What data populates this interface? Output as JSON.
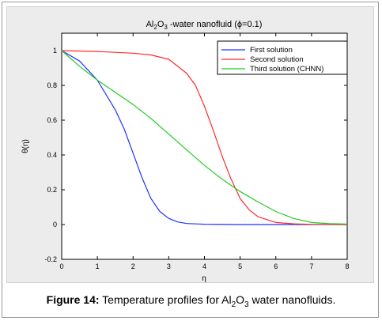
{
  "chart_data": {
    "type": "line",
    "title_prefix": "Al",
    "title_sub1": "2",
    "title_mid": "O",
    "title_sub2": "3",
    "title_suffix": " -water nanofluid  (ϕ=0.1)",
    "xlabel": "η",
    "ylabel": "θ(η)",
    "xlim": [
      0,
      8
    ],
    "ylim": [
      -0.2,
      1.1
    ],
    "xticks": [
      0,
      1,
      2,
      3,
      4,
      5,
      6,
      7,
      8
    ],
    "yticks": [
      -0.2,
      0,
      0.2,
      0.4,
      0.6,
      0.8,
      1
    ],
    "grid": false,
    "legend_position": "top-right",
    "series": [
      {
        "name": "First solution",
        "color": "#1f32ff",
        "x": [
          0,
          0.5,
          1,
          1.5,
          1.75,
          2,
          2.25,
          2.5,
          2.75,
          3,
          3.25,
          3.5,
          4,
          5,
          6,
          7,
          8
        ],
        "y": [
          1,
          0.94,
          0.83,
          0.66,
          0.55,
          0.41,
          0.27,
          0.15,
          0.075,
          0.035,
          0.015,
          0.006,
          0.002,
          0,
          0,
          0,
          0
        ]
      },
      {
        "name": "Second solution",
        "color": "#ff2a2a",
        "x": [
          0,
          1,
          2,
          2.5,
          3,
          3.5,
          3.75,
          4,
          4.25,
          4.5,
          4.75,
          5,
          5.25,
          5.5,
          6,
          6.5,
          7,
          8
        ],
        "y": [
          1,
          0.995,
          0.985,
          0.975,
          0.95,
          0.87,
          0.8,
          0.68,
          0.54,
          0.39,
          0.26,
          0.15,
          0.085,
          0.045,
          0.012,
          0.004,
          0.001,
          0
        ]
      },
      {
        "name": "Third solution (CHNN)",
        "color": "#22cc22",
        "x": [
          0,
          0.5,
          1,
          1.5,
          2,
          2.5,
          3,
          3.5,
          4,
          4.5,
          5,
          5.5,
          6,
          6.5,
          7,
          7.5,
          8
        ],
        "y": [
          1,
          0.91,
          0.83,
          0.76,
          0.69,
          0.61,
          0.52,
          0.43,
          0.34,
          0.26,
          0.19,
          0.13,
          0.075,
          0.035,
          0.012,
          0.005,
          0.003
        ]
      }
    ]
  },
  "caption": {
    "label": "Figure 14:",
    "text_before": " Temperature profiles for Al",
    "sub1": "2",
    "mid": "O",
    "sub2": "3",
    "text_after": " water nanofluids."
  }
}
